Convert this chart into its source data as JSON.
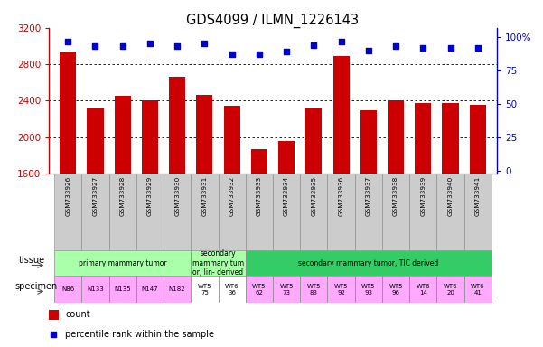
{
  "title": "GDS4099 / ILMN_1226143",
  "samples": [
    "GSM733926",
    "GSM733927",
    "GSM733928",
    "GSM733929",
    "GSM733930",
    "GSM733931",
    "GSM733932",
    "GSM733933",
    "GSM733934",
    "GSM733935",
    "GSM733936",
    "GSM733937",
    "GSM733938",
    "GSM733939",
    "GSM733940",
    "GSM733941"
  ],
  "counts": [
    2940,
    2310,
    2450,
    2400,
    2660,
    2460,
    2340,
    1870,
    1960,
    2310,
    2890,
    2290,
    2400,
    2370,
    2370,
    2350
  ],
  "percentile_ranks": [
    97,
    93,
    93,
    95,
    93,
    95,
    87,
    87,
    89,
    94,
    97,
    90,
    93,
    92,
    92,
    92
  ],
  "ymin": 1600,
  "ymax": 3200,
  "yticks": [
    1600,
    2000,
    2400,
    2800,
    3200
  ],
  "right_yticks": [
    0,
    25,
    50,
    75,
    100
  ],
  "bar_color": "#cc0000",
  "dot_color": "#0000cc",
  "tissue_groups": [
    {
      "label": "primary mammary tumor",
      "start": 0,
      "end": 4,
      "color": "#aaffaa"
    },
    {
      "label": "secondary\nmammary tum\nor, lin- derived",
      "start": 5,
      "end": 6,
      "color": "#aaffaa"
    },
    {
      "label": "secondary mammary tumor, TIC derived",
      "start": 7,
      "end": 15,
      "color": "#33cc66"
    }
  ],
  "specimen_labels": [
    {
      "label": "N86",
      "start": 0,
      "end": 0,
      "color": "#ffaaff"
    },
    {
      "label": "N133",
      "start": 1,
      "end": 1,
      "color": "#ffaaff"
    },
    {
      "label": "N135",
      "start": 2,
      "end": 2,
      "color": "#ffaaff"
    },
    {
      "label": "N147",
      "start": 3,
      "end": 3,
      "color": "#ffaaff"
    },
    {
      "label": "N182",
      "start": 4,
      "end": 4,
      "color": "#ffaaff"
    },
    {
      "label": "WT5\n75",
      "start": 5,
      "end": 5,
      "color": "#ffffff"
    },
    {
      "label": "WT6\n36",
      "start": 6,
      "end": 6,
      "color": "#ffffff"
    },
    {
      "label": "WT5\n62",
      "start": 7,
      "end": 7,
      "color": "#ffaaff"
    },
    {
      "label": "WT5\n73",
      "start": 8,
      "end": 8,
      "color": "#ffaaff"
    },
    {
      "label": "WT5\n83",
      "start": 9,
      "end": 9,
      "color": "#ffaaff"
    },
    {
      "label": "WT5\n92",
      "start": 10,
      "end": 10,
      "color": "#ffaaff"
    },
    {
      "label": "WT5\n93",
      "start": 11,
      "end": 11,
      "color": "#ffaaff"
    },
    {
      "label": "WT5\n96",
      "start": 12,
      "end": 12,
      "color": "#ffaaff"
    },
    {
      "label": "WT6\n14",
      "start": 13,
      "end": 13,
      "color": "#ffaaff"
    },
    {
      "label": "WT6\n20",
      "start": 14,
      "end": 14,
      "color": "#ffaaff"
    },
    {
      "label": "WT6\n41",
      "start": 15,
      "end": 15,
      "color": "#ffaaff"
    }
  ],
  "bar_color_legend": "#cc0000",
  "dot_color_legend": "#0000cc",
  "bg_color": "#ffffff",
  "xtick_bg": "#cccccc",
  "left_label_bg": "#ffffff"
}
